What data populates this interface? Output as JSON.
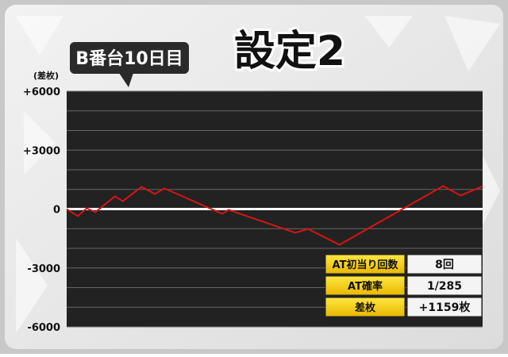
{
  "chart_data": {
    "type": "line",
    "title": "設定2",
    "badge": "B番台10日目",
    "ylabel": "(差枚)",
    "x": [
      0,
      2.7,
      4.8,
      6.9,
      11.6,
      13.5,
      18.0,
      21.2,
      23.5,
      37.4,
      38.9,
      55.0,
      58.0,
      65.6,
      90.5,
      94.7,
      100
    ],
    "values": [
      0,
      -360,
      40,
      -160,
      650,
      400,
      1130,
      770,
      1050,
      -240,
      -40,
      -1210,
      -1010,
      -1820,
      1170,
      690,
      1160
    ],
    "color": "#d81414",
    "xlim": [
      0,
      100
    ],
    "ylim": [
      -6000,
      6000
    ],
    "yticks": [
      {
        "value": 6000,
        "label": "+6000"
      },
      {
        "value": 3000,
        "label": "+3000"
      },
      0,
      -3000,
      -6000
    ],
    "minor_yticks": [
      5000,
      4000,
      2000,
      1000,
      -1000,
      -2000,
      -4000,
      -5000
    ],
    "grid": true
  },
  "table": {
    "rows": [
      [
        "AT初当り回数",
        "8回"
      ],
      [
        "AT確率",
        "1/285"
      ],
      [
        "差枚",
        "+1159枚"
      ]
    ]
  }
}
